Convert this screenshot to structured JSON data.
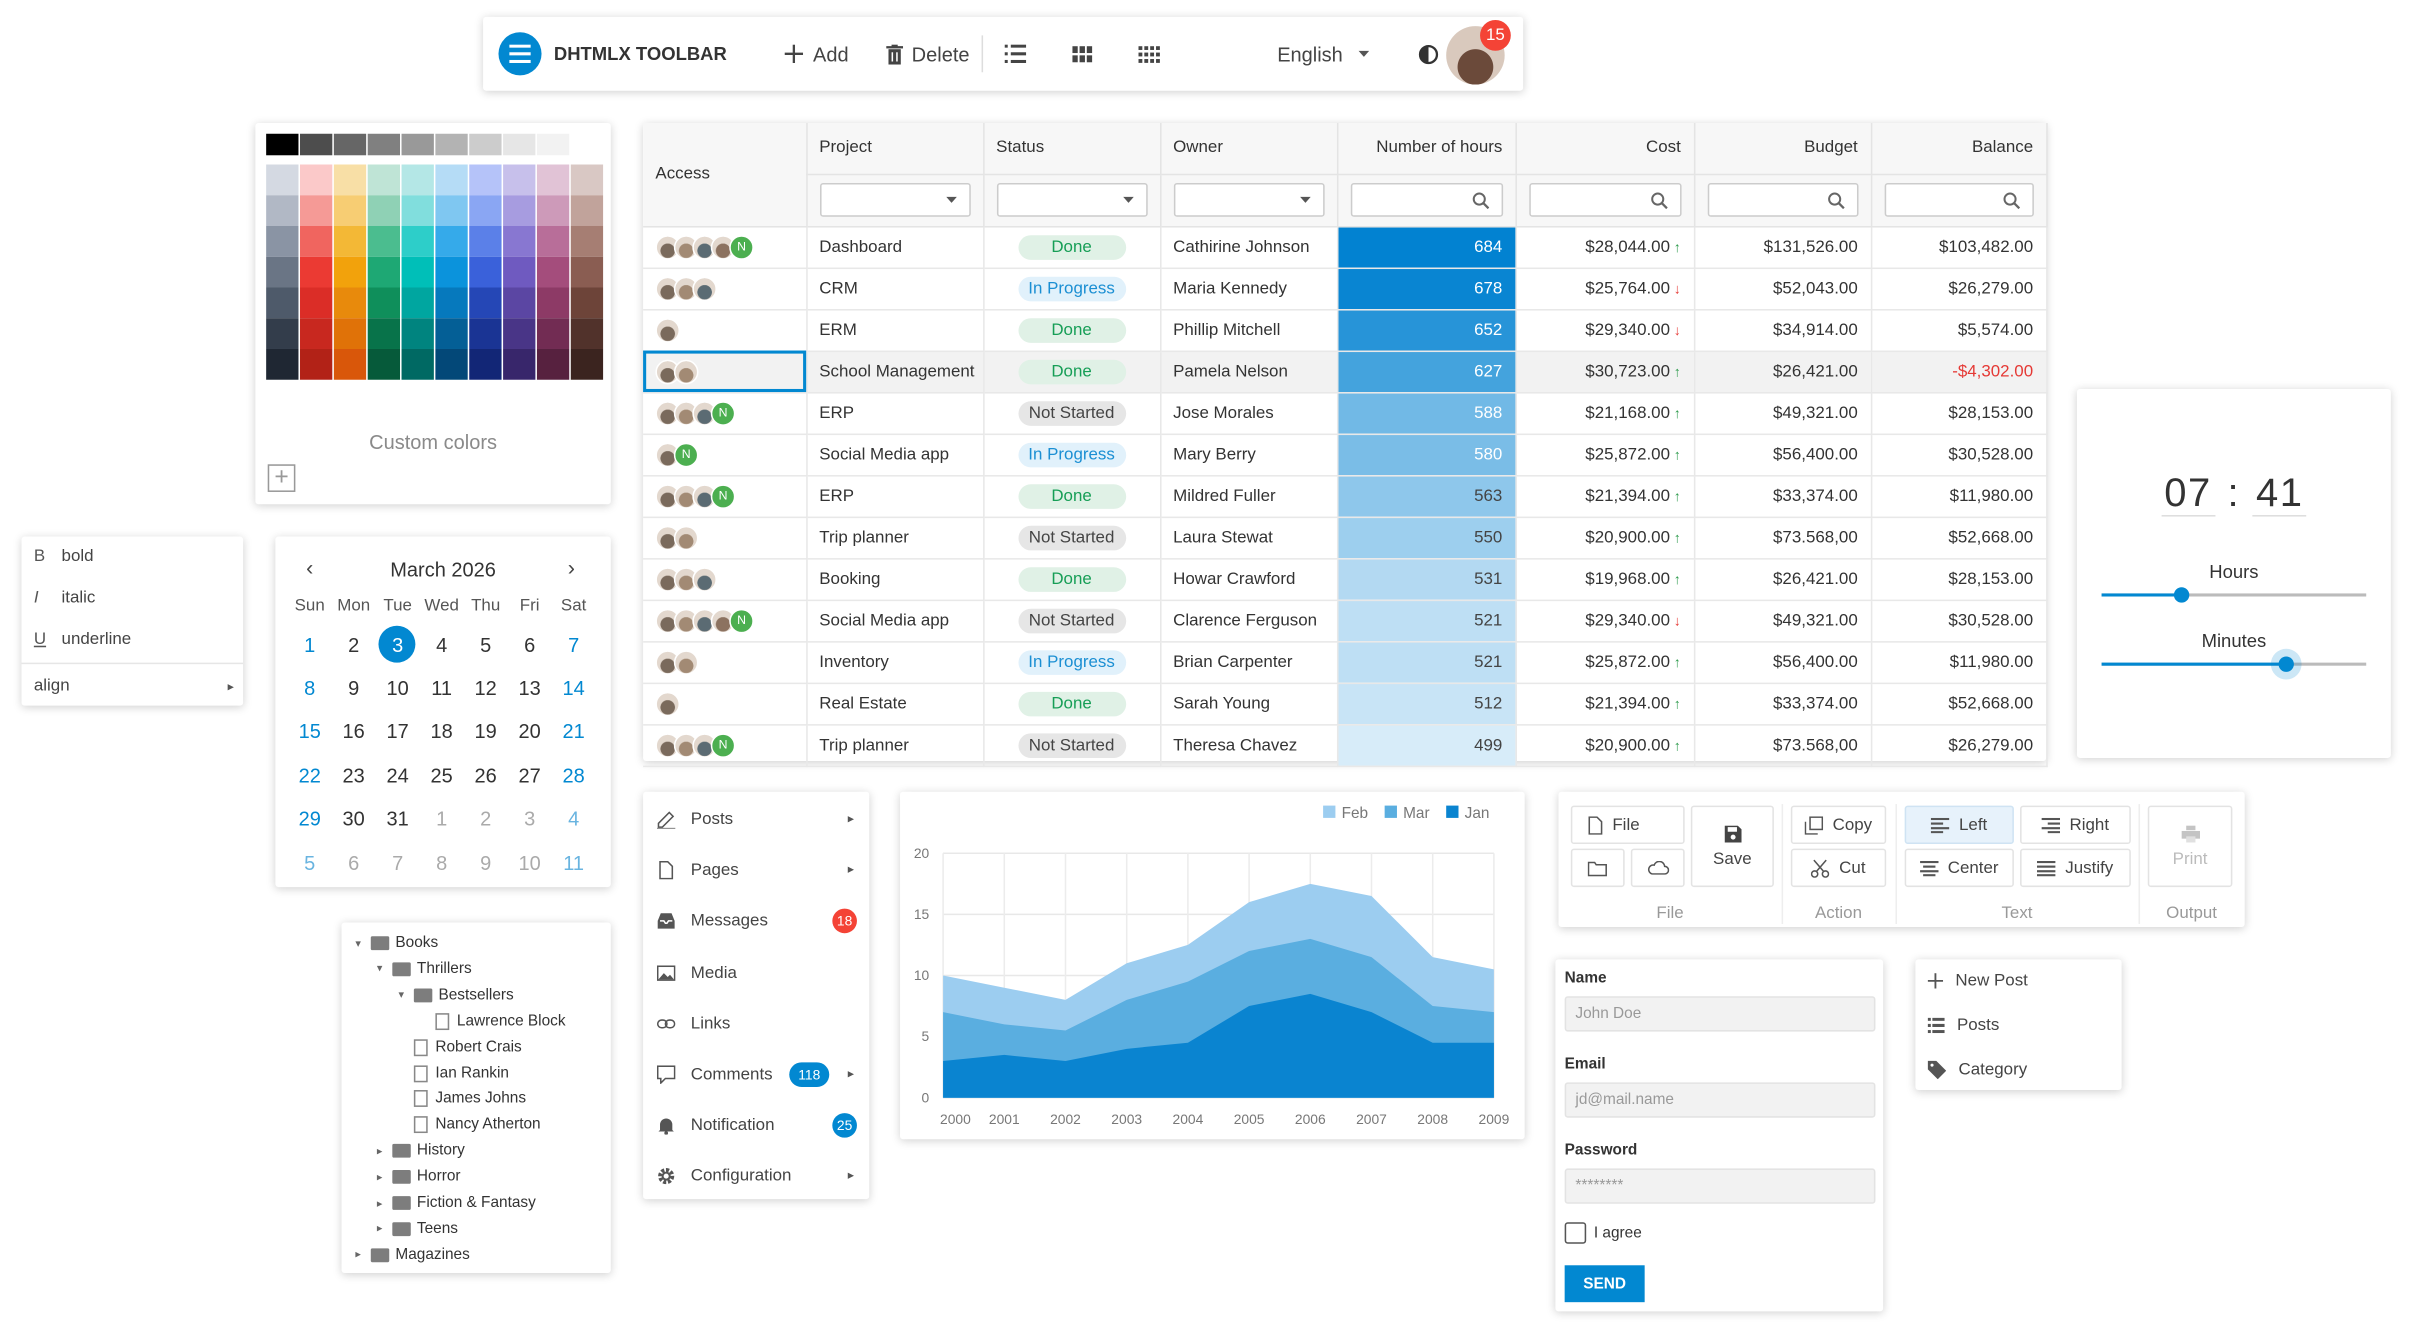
{
  "toolbar": {
    "title": "DHTMLX TOOLBAR",
    "add_label": "Add",
    "delete_label": "Delete",
    "language": "English",
    "notification_count": "15"
  },
  "colorpicker": {
    "custom_colors_label": "Custom colors",
    "colors": [
      [
        "#000000",
        "#4d4d4d",
        "#666666",
        "#808080",
        "#999999",
        "#b3b3b3",
        "#cccccc",
        "#e6e6e6",
        "#f2f2f2",
        "#ffffff"
      ],
      [
        "#d4d9e2",
        "#fbc9c9",
        "#f8dfa6",
        "#bfe4d6",
        "#b4e7e6",
        "#b5dcf6",
        "#b5c3f9",
        "#c7c0eb",
        "#e1c3d6",
        "#d9c8c4"
      ],
      [
        "#b1b8c5",
        "#f59a96",
        "#f7cd73",
        "#8fd1b5",
        "#81dedd",
        "#7fc7f1",
        "#8aa6f3",
        "#a79ce0",
        "#cd9ab9",
        "#c1a39b"
      ],
      [
        "#8a94a4",
        "#f0655f",
        "#f3b836",
        "#4bbd8f",
        "#2dcec9",
        "#35aaea",
        "#5b80e8",
        "#8877d1",
        "#b86e99",
        "#a67e73"
      ],
      [
        "#6a7585",
        "#eb3a33",
        "#f2a20c",
        "#1ea874",
        "#00bfb8",
        "#0b93dc",
        "#3a61da",
        "#6f5ac0",
        "#a44d7c",
        "#8a5d52"
      ],
      [
        "#4e5a6a",
        "#db2d27",
        "#e88a0c",
        "#0f8f5b",
        "#00a6a0",
        "#0679bd",
        "#2547b6",
        "#5b46a3",
        "#8d3a66",
        "#6d4439"
      ],
      [
        "#333d4b",
        "#c8281f",
        "#e07208",
        "#08734a",
        "#00847f",
        "#045f96",
        "#1a3494",
        "#493587",
        "#722c53",
        "#51322b"
      ],
      [
        "#1f2733",
        "#b22217",
        "#d9570a",
        "#065a3a",
        "#006963",
        "#034878",
        "#122676",
        "#38266b",
        "#57213f",
        "#3b241f"
      ]
    ]
  },
  "grid": {
    "columns": [
      "Access",
      "Project",
      "Status",
      "Owner",
      "Number of hours",
      "Cost",
      "Budget",
      "Balance"
    ],
    "rows": [
      {
        "avatars": 4,
        "n": true,
        "project": "Dashboard",
        "status": "Done",
        "owner": "Cathirine Johnson",
        "hours": "684",
        "cost": "$28,044.00",
        "trend": "up",
        "budget": "$131,526.00",
        "balance": "$103,482.00",
        "neg": false
      },
      {
        "avatars": 3,
        "n": false,
        "project": "CRM",
        "status": "In Progress",
        "owner": "Maria Kennedy",
        "hours": "678",
        "cost": "$25,764.00",
        "trend": "down",
        "budget": "$52,043.00",
        "balance": "$26,279.00",
        "neg": false
      },
      {
        "avatars": 1,
        "n": false,
        "project": "ERM",
        "status": "Done",
        "owner": "Phillip Mitchell",
        "hours": "652",
        "cost": "$29,340.00",
        "trend": "down",
        "budget": "$34,914.00",
        "balance": "$5,574.00",
        "neg": false
      },
      {
        "avatars": 2,
        "n": false,
        "project": "School Management",
        "status": "Done",
        "owner": "Pamela Nelson",
        "hours": "627",
        "cost": "$30,723.00",
        "trend": "up",
        "budget": "$26,421.00",
        "balance": "-$4,302.00",
        "neg": true
      },
      {
        "avatars": 3,
        "n": true,
        "project": "ERP",
        "status": "Not Started",
        "owner": "Jose Morales",
        "hours": "588",
        "cost": "$21,168.00",
        "trend": "up",
        "budget": "$49,321.00",
        "balance": "$28,153.00",
        "neg": false
      },
      {
        "avatars": 1,
        "n": true,
        "project": "Social Media app",
        "status": "In Progress",
        "owner": "Mary Berry",
        "hours": "580",
        "cost": "$25,872.00",
        "trend": "up",
        "budget": "$56,400.00",
        "balance": "$30,528.00",
        "neg": false
      },
      {
        "avatars": 3,
        "n": true,
        "project": "ERP",
        "status": "Done",
        "owner": "Mildred Fuller",
        "hours": "563",
        "cost": "$21,394.00",
        "trend": "up",
        "budget": "$33,374.00",
        "balance": "$11,980.00",
        "neg": false
      },
      {
        "avatars": 2,
        "n": false,
        "project": "Trip planner",
        "status": "Not Started",
        "owner": "Laura Stewat",
        "hours": "550",
        "cost": "$20,900.00",
        "trend": "up",
        "budget": "$73.568,00",
        "balance": "$52,668.00",
        "neg": false
      },
      {
        "avatars": 3,
        "n": false,
        "project": "Booking",
        "status": "Done",
        "owner": "Howar Crawford",
        "hours": "531",
        "cost": "$19,968.00",
        "trend": "up",
        "budget": "$26,421.00",
        "balance": "$28,153.00",
        "neg": false
      },
      {
        "avatars": 4,
        "n": true,
        "project": "Social Media app",
        "status": "Not Started",
        "owner": "Clarence Ferguson",
        "hours": "521",
        "cost": "$29,340.00",
        "trend": "down",
        "budget": "$49,321.00",
        "balance": "$30,528.00",
        "neg": false
      },
      {
        "avatars": 2,
        "n": false,
        "project": "Inventory",
        "status": "In Progress",
        "owner": "Brian Carpenter",
        "hours": "521",
        "cost": "$25,872.00",
        "trend": "up",
        "budget": "$56,400.00",
        "balance": "$11,980.00",
        "neg": false
      },
      {
        "avatars": 1,
        "n": false,
        "project": "Real Estate",
        "status": "Done",
        "owner": "Sarah Young",
        "hours": "512",
        "cost": "$21,394.00",
        "trend": "up",
        "budget": "$33,374.00",
        "balance": "$52,668.00",
        "neg": false
      },
      {
        "avatars": 3,
        "n": true,
        "project": "Trip planner",
        "status": "Not Started",
        "owner": "Theresa Chavez",
        "hours": "499",
        "cost": "$20,900.00",
        "trend": "up",
        "budget": "$73.568,00",
        "balance": "$26,279.00",
        "neg": false
      }
    ]
  },
  "timepicker": {
    "hours": "07",
    "minutes": "41",
    "separator": ":",
    "hours_label": "Hours",
    "minutes_label": "Minutes",
    "hours_value": 7,
    "minutes_value": 41
  },
  "context_menu": {
    "items": [
      {
        "key": "B",
        "label": "bold"
      },
      {
        "key": "I",
        "label": "italic"
      },
      {
        "key": "U",
        "label": "underline"
      }
    ],
    "align_label": "align"
  },
  "calendar": {
    "month": "March 2026",
    "weekdays": [
      "Sun",
      "Mon",
      "Tue",
      "Wed",
      "Thu",
      "Fri",
      "Sat"
    ],
    "weeks": [
      [
        "1",
        "2",
        "3",
        "4",
        "5",
        "6",
        "7"
      ],
      [
        "8",
        "9",
        "10",
        "11",
        "12",
        "13",
        "14"
      ],
      [
        "15",
        "16",
        "17",
        "18",
        "19",
        "20",
        "21"
      ],
      [
        "22",
        "23",
        "24",
        "25",
        "26",
        "27",
        "28"
      ],
      [
        "29",
        "30",
        "31",
        "1",
        "2",
        "3",
        "4"
      ],
      [
        "5",
        "6",
        "7",
        "8",
        "9",
        "10",
        "11"
      ]
    ],
    "selected": "3"
  },
  "tree": [
    {
      "label": "Books",
      "level": 0,
      "type": "folder",
      "open": true
    },
    {
      "label": "Thrillers",
      "level": 1,
      "type": "folder",
      "open": true
    },
    {
      "label": "Bestsellers",
      "level": 2,
      "type": "folder",
      "open": true
    },
    {
      "label": "Lawrence Block",
      "level": 3,
      "type": "file"
    },
    {
      "label": "Robert Crais",
      "level": 2,
      "type": "file"
    },
    {
      "label": "Ian Rankin",
      "level": 2,
      "type": "file"
    },
    {
      "label": "James Johns",
      "level": 2,
      "type": "file"
    },
    {
      "label": "Nancy Atherton",
      "level": 2,
      "type": "file"
    },
    {
      "label": "History",
      "level": 1,
      "type": "folder",
      "open": false
    },
    {
      "label": "Horror",
      "level": 1,
      "type": "folder",
      "open": false
    },
    {
      "label": "Fiction & Fantasy",
      "level": 1,
      "type": "folder",
      "open": false
    },
    {
      "label": "Teens",
      "level": 1,
      "type": "folder",
      "open": false
    },
    {
      "label": "Magazines",
      "level": 0,
      "type": "folder",
      "open": false
    }
  ],
  "sidebar": {
    "items": [
      {
        "label": "Posts",
        "icon": "edit-icon",
        "chevron": true
      },
      {
        "label": "Pages",
        "icon": "page-icon",
        "chevron": true
      },
      {
        "label": "Messages",
        "icon": "inbox-icon",
        "count": "18",
        "count_color": "#f44336"
      },
      {
        "label": "Media",
        "icon": "image-icon"
      },
      {
        "label": "Links",
        "icon": "link-icon"
      },
      {
        "label": "Comments",
        "icon": "comment-icon",
        "count": "118",
        "count_color": "#0288d1",
        "chevron": true
      },
      {
        "label": "Notification",
        "icon": "bell-icon",
        "count": "25",
        "count_color": "#0288d1"
      },
      {
        "label": "Configuration",
        "icon": "gear-icon",
        "chevron": true
      }
    ]
  },
  "chart_data": {
    "type": "area",
    "x": [
      "2000",
      "2001",
      "2002",
      "2003",
      "2004",
      "2005",
      "2006",
      "2007",
      "2008",
      "2009"
    ],
    "series": [
      {
        "name": "Feb",
        "color": "#9ccdf0",
        "values": [
          10,
          9,
          8,
          11,
          12.5,
          16,
          17.5,
          16.5,
          11.5,
          10.5
        ]
      },
      {
        "name": "Mar",
        "color": "#5aaee0",
        "values": [
          7,
          6,
          5.5,
          8,
          9.5,
          12,
          13,
          11.5,
          7.5,
          7
        ]
      },
      {
        "name": "Jan",
        "color": "#0a84d0",
        "values": [
          3,
          3.5,
          3,
          4,
          4.5,
          7.5,
          8.5,
          7,
          4.5,
          4.5
        ]
      }
    ],
    "legend_order": [
      "Feb",
      "Mar",
      "Jan"
    ],
    "ylim": [
      0,
      20
    ],
    "yticks": [
      "0",
      "5",
      "10",
      "15",
      "20"
    ],
    "grid": true,
    "legend": "top-right"
  },
  "ribbon": {
    "file_label": "File",
    "save_label": "Save",
    "copy_label": "Copy",
    "cut_label": "Cut",
    "left_label": "Left",
    "right_label": "Right",
    "center_label": "Center",
    "justify_label": "Justify",
    "print_label": "Print",
    "groups": [
      "File",
      "Action",
      "Text",
      "Output"
    ]
  },
  "form": {
    "name_label": "Name",
    "name_placeholder": "John Doe",
    "email_label": "Email",
    "email_placeholder": "jd@mail.name",
    "password_label": "Password",
    "password_value": "********",
    "agree_label": "I agree",
    "send_label": "SEND"
  },
  "small_menu": {
    "items": [
      {
        "label": "New Post",
        "icon": "plus-icon"
      },
      {
        "label": "Posts",
        "icon": "list-icon"
      },
      {
        "label": "Category",
        "icon": "tag-icon"
      }
    ]
  }
}
